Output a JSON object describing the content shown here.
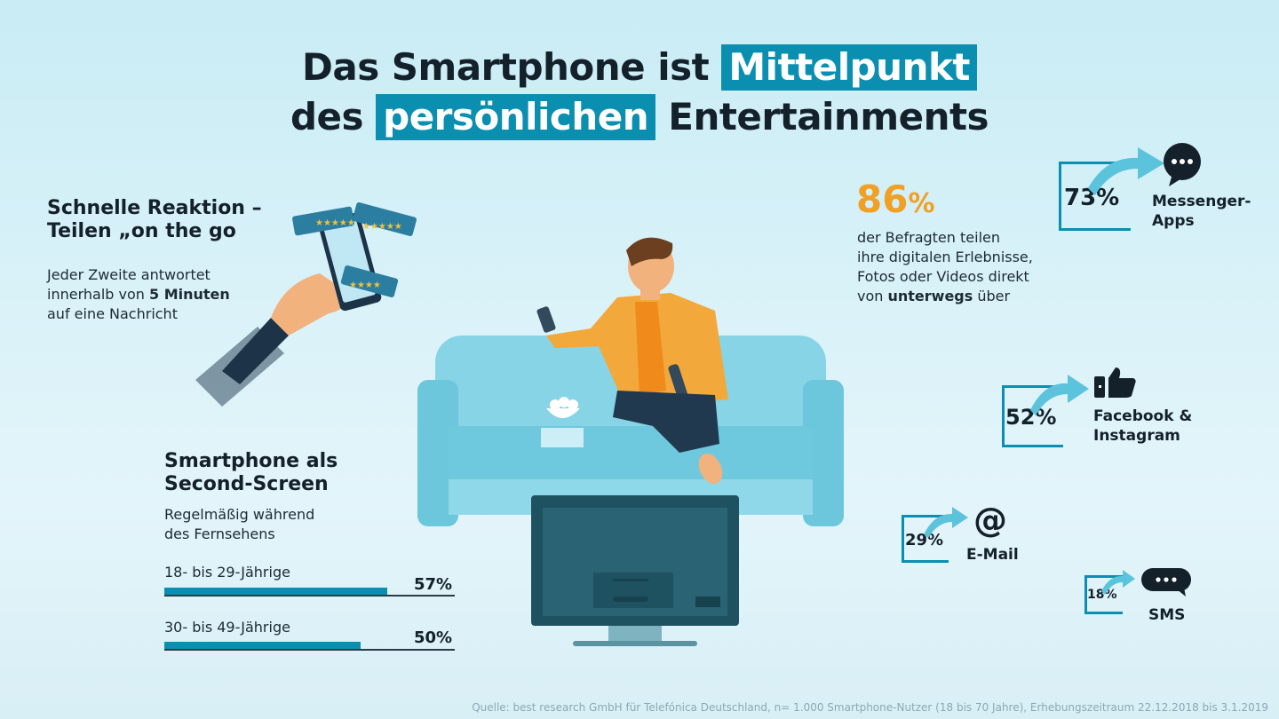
{
  "title": {
    "line1_pre": "Das Smartphone ist",
    "line1_hl": "Mittelpunkt",
    "line2_pre": "des",
    "line2_hl": "persönlichen",
    "line2_post": "Entertainments"
  },
  "left_top": {
    "heading_1": "Schnelle Reaktion –",
    "heading_2": "Teilen „on the go",
    "text_1": "Jeder Zweite antwortet",
    "text_2_pre": "innerhalb von ",
    "text_2_bold": "5 Minuten",
    "text_3": "auf eine Nachricht"
  },
  "second_screen": {
    "heading_1": "Smartphone als",
    "heading_2": "Second-Screen",
    "sub_1": "Regelmäßig während",
    "sub_2": "des Fernsehens",
    "rows": [
      {
        "label": "18- bis 29-Jährige",
        "value_text": "57%",
        "value": 57
      },
      {
        "label": "30- bis 49-Jährige",
        "value_text": "50%",
        "value": 50
      }
    ]
  },
  "share": {
    "big_number": "86",
    "big_unit": "%",
    "line_1": "der Befragten teilen",
    "line_2": "ihre digitalen Erlebnisse,",
    "line_3": "Fotos oder Videos direkt",
    "line_4_pre": "von ",
    "line_4_bold": "unterwegs",
    "line_4_post": " über"
  },
  "channels": [
    {
      "value_text": "73%",
      "value": 73,
      "label_1": "Messenger-",
      "label_2": "Apps",
      "icon": "chat-bubble-icon"
    },
    {
      "value_text": "52%",
      "value": 52,
      "label_1": "Facebook &",
      "label_2": "Instagram",
      "icon": "thumbs-up-icon"
    },
    {
      "value_text": "29%",
      "value": 29,
      "label_1": "E-Mail",
      "label_2": "",
      "icon": "at-sign-icon"
    },
    {
      "value_text": "18%",
      "value": 18,
      "label_1": "SMS",
      "label_2": "",
      "icon": "sms-bubble-icon"
    }
  ],
  "at_symbol": "@",
  "source": "Quelle: best research GmbH für Telefónica Deutschland, n= 1.000 Smartphone-Nutzer (18 bis 70 Jahre), Erhebungszeitraum 22.12.2018 bis 3.1.2019",
  "colors": {
    "accent_blue": "#0a8fb0",
    "highlight_orange": "#f0a024",
    "text_dark": "#14202a",
    "sofa": "#7fd0e2",
    "tv": "#1d4f5c"
  }
}
